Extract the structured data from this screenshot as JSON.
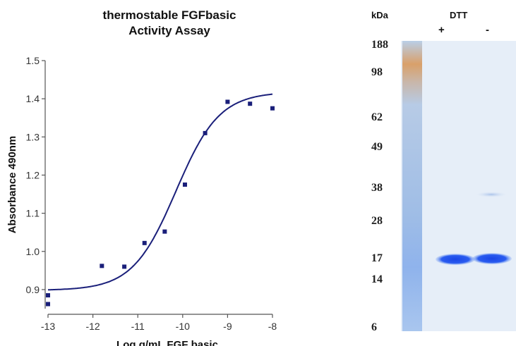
{
  "chart_data": {
    "type": "scatter",
    "title": [
      "thermostable FGFbasic",
      "Activity Assay"
    ],
    "xlabel": "Log g/mL FGF basic",
    "ylabel": "Absorbance 490nm",
    "xlim": [
      -13,
      -8
    ],
    "ylim": [
      0.85,
      1.5
    ],
    "xticks": [
      -13,
      -12,
      -11,
      -10,
      -9,
      -8
    ],
    "yticks": [
      0.9,
      1.0,
      1.1,
      1.2,
      1.3,
      1.4,
      1.5
    ],
    "ytick_labels": [
      "0.9",
      "1.0",
      "1.1",
      "1.2",
      "1.3",
      "1.4",
      "1.5"
    ],
    "grid": false,
    "series": [
      {
        "points": [
          {
            "x": -13.0,
            "y": 0.885
          },
          {
            "x": -13.0,
            "y": 0.862
          },
          {
            "x": -11.8,
            "y": 0.962
          },
          {
            "x": -11.3,
            "y": 0.96
          },
          {
            "x": -10.85,
            "y": 1.022
          },
          {
            "x": -10.4,
            "y": 1.052
          },
          {
            "x": -9.95,
            "y": 1.175
          },
          {
            "x": -9.5,
            "y": 1.31
          },
          {
            "x": -9.0,
            "y": 1.392
          },
          {
            "x": -8.5,
            "y": 1.387
          },
          {
            "x": -8.0,
            "y": 1.375
          }
        ],
        "fit": {
          "bottom": 0.898,
          "top": 1.418,
          "logEC50": -10.15,
          "hill": 0.9
        },
        "color": "#1a1f7a"
      }
    ]
  },
  "gel": {
    "unit_label": "kDa",
    "reagent_label": "DTT",
    "lanes": [
      "+",
      "-"
    ],
    "markers": [
      "188",
      "98",
      "62",
      "49",
      "38",
      "28",
      "17",
      "14",
      "6"
    ],
    "band_kda": 17
  },
  "colors": {
    "curve": "#1a1f7a",
    "gel_background": "#e4ecf6",
    "band": "#1f4fe0"
  }
}
